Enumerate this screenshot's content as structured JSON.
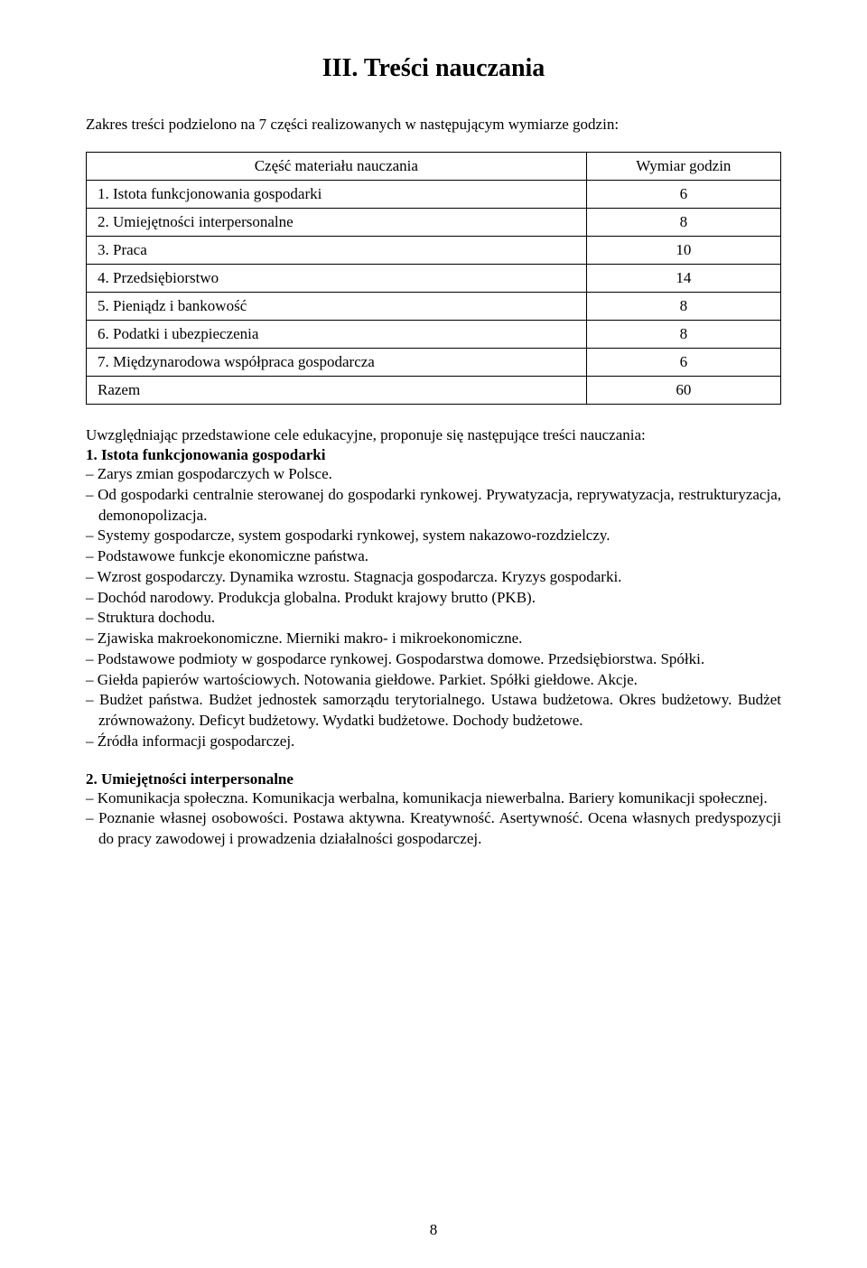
{
  "heading": "III. Treści nauczania",
  "intro": "Zakres treści podzielono na 7 części realizowanych w następującym wymiarze godzin:",
  "table": {
    "header_left": "Część materiału nauczania",
    "header_right": "Wymiar godzin",
    "rows": [
      {
        "label": "1. Istota funkcjonowania gospodarki",
        "hours": "6"
      },
      {
        "label": "2. Umiejętności interpersonalne",
        "hours": "8"
      },
      {
        "label": "3. Praca",
        "hours": "10"
      },
      {
        "label": "4. Przedsiębiorstwo",
        "hours": "14"
      },
      {
        "label": "5. Pieniądz i bankowość",
        "hours": "8"
      },
      {
        "label": "6. Podatki i ubezpieczenia",
        "hours": "8"
      },
      {
        "label": "7. Międzynarodowa współpraca gospodarcza",
        "hours": "6"
      },
      {
        "label": "Razem",
        "hours": "60"
      }
    ]
  },
  "after_table": "Uwzględniając przedstawione cele edukacyjne, proponuje się następujące treści nauczania:",
  "section1": {
    "title": "1. Istota funkcjonowania gospodarki",
    "items": [
      "Zarys zmian gospodarczych w Polsce.",
      "Od gospodarki centralnie sterowanej do gospodarki rynkowej. Prywatyzacja, reprywatyzacja, restrukturyzacja, demonopolizacja.",
      "Systemy gospodarcze, system gospodarki rynkowej, system nakazowo-rozdzielczy.",
      "Podstawowe funkcje ekonomiczne państwa.",
      "Wzrost gospodarczy. Dynamika wzrostu. Stagnacja gospodarcza. Kryzys gospodarki.",
      "Dochód narodowy. Produkcja globalna. Produkt krajowy brutto (PKB).",
      "Struktura dochodu.",
      "Zjawiska makroekonomiczne. Mierniki makro- i mikroekonomiczne.",
      "Podstawowe podmioty w gospodarce rynkowej. Gospodarstwa domowe. Przedsiębiorstwa. Spółki.",
      "Giełda papierów wartościowych. Notowania giełdowe. Parkiet. Spółki giełdowe. Akcje.",
      "Budżet państwa. Budżet jednostek samorządu terytorialnego. Ustawa budżetowa. Okres budżetowy. Budżet zrównoważony. Deficyt budżetowy. Wydatki budżetowe. Dochody budżetowe.",
      "Źródła informacji gospodarczej."
    ]
  },
  "section2": {
    "title": "2. Umiejętności interpersonalne",
    "items": [
      "Komunikacja społeczna. Komunikacja werbalna, komunikacja niewerbalna. Bariery komunikacji społecznej.",
      "Poznanie własnej osobowości. Postawa aktywna. Kreatywność. Asertywność. Ocena własnych predyspozycji do pracy zawodowej i prowadzenia działalności gospodarczej."
    ]
  },
  "page_number": "8"
}
